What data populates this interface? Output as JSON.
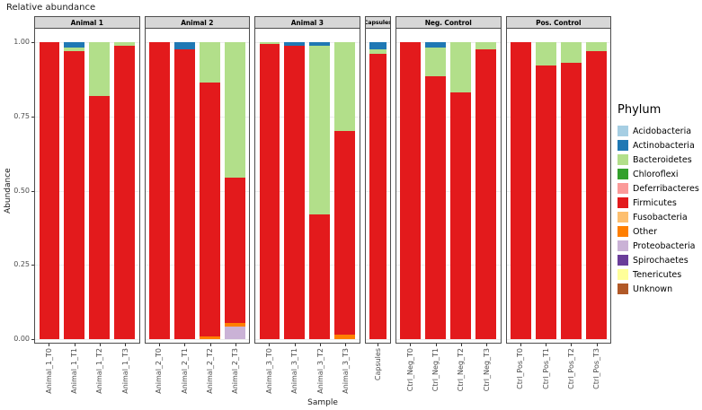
{
  "chart_data": {
    "type": "bar",
    "stacked": true,
    "title": "Relative abundance",
    "xlabel": "Sample",
    "ylabel": "Abundance",
    "ylim": [
      0,
      1
    ],
    "legend_title": "Phylum",
    "yticks": [
      {
        "value": 0.0,
        "label": "0.00"
      },
      {
        "value": 0.25,
        "label": "0.25"
      },
      {
        "value": 0.5,
        "label": "0.50"
      },
      {
        "value": 0.75,
        "label": "0.75"
      },
      {
        "value": 1.0,
        "label": "1.00"
      }
    ],
    "phyla": [
      {
        "name": "Acidobacteria",
        "color": "#A6CEE3"
      },
      {
        "name": "Actinobacteria",
        "color": "#1F78B4"
      },
      {
        "name": "Bacteroidetes",
        "color": "#B2DF8A"
      },
      {
        "name": "Chloroflexi",
        "color": "#33A02C"
      },
      {
        "name": "Deferribacteres",
        "color": "#FB9A99"
      },
      {
        "name": "Firmicutes",
        "color": "#E31A1C"
      },
      {
        "name": "Fusobacteria",
        "color": "#FDBF6F"
      },
      {
        "name": "Other",
        "color": "#FF7F00"
      },
      {
        "name": "Proteobacteria",
        "color": "#CAB2D6"
      },
      {
        "name": "Spirochaetes",
        "color": "#6A3D9A"
      },
      {
        "name": "Tenericutes",
        "color": "#FFFF99"
      },
      {
        "name": "Unknown",
        "color": "#B15928"
      }
    ],
    "facets": [
      {
        "label": "Animal 1",
        "bars": [
          {
            "sample": "Animal_1_T0",
            "segments": [
              {
                "phylum": "Firmicutes",
                "value": 1.0
              }
            ]
          },
          {
            "sample": "Animal_1_T1",
            "segments": [
              {
                "phylum": "Firmicutes",
                "value": 0.97
              },
              {
                "phylum": "Bacteroidetes",
                "value": 0.012
              },
              {
                "phylum": "Actinobacteria",
                "value": 0.018
              }
            ]
          },
          {
            "sample": "Animal_1_T2",
            "segments": [
              {
                "phylum": "Firmicutes",
                "value": 0.82
              },
              {
                "phylum": "Bacteroidetes",
                "value": 0.18
              }
            ]
          },
          {
            "sample": "Animal_1_T3",
            "segments": [
              {
                "phylum": "Firmicutes",
                "value": 0.988
              },
              {
                "phylum": "Bacteroidetes",
                "value": 0.012
              }
            ]
          }
        ]
      },
      {
        "label": "Animal 2",
        "bars": [
          {
            "sample": "Animal_2_T0",
            "segments": [
              {
                "phylum": "Firmicutes",
                "value": 1.0
              }
            ]
          },
          {
            "sample": "Animal_2_T1",
            "segments": [
              {
                "phylum": "Firmicutes",
                "value": 0.975
              },
              {
                "phylum": "Actinobacteria",
                "value": 0.025
              }
            ]
          },
          {
            "sample": "Animal_2_T2",
            "segments": [
              {
                "phylum": "Other",
                "value": 0.01
              },
              {
                "phylum": "Firmicutes",
                "value": 0.855
              },
              {
                "phylum": "Bacteroidetes",
                "value": 0.135
              }
            ]
          },
          {
            "sample": "Animal_2_T3",
            "segments": [
              {
                "phylum": "Proteobacteria",
                "value": 0.042
              },
              {
                "phylum": "Other",
                "value": 0.012
              },
              {
                "phylum": "Firmicutes",
                "value": 0.49
              },
              {
                "phylum": "Bacteroidetes",
                "value": 0.456
              }
            ]
          }
        ]
      },
      {
        "label": "Animal 3",
        "bars": [
          {
            "sample": "Animal_3_T0",
            "segments": [
              {
                "phylum": "Firmicutes",
                "value": 0.995
              },
              {
                "phylum": "Bacteroidetes",
                "value": 0.005
              }
            ]
          },
          {
            "sample": "Animal_3_T1",
            "segments": [
              {
                "phylum": "Firmicutes",
                "value": 0.988
              },
              {
                "phylum": "Actinobacteria",
                "value": 0.012
              }
            ]
          },
          {
            "sample": "Animal_3_T2",
            "segments": [
              {
                "phylum": "Firmicutes",
                "value": 0.42
              },
              {
                "phylum": "Bacteroidetes",
                "value": 0.568
              },
              {
                "phylum": "Actinobacteria",
                "value": 0.012
              }
            ]
          },
          {
            "sample": "Animal_3_T3",
            "segments": [
              {
                "phylum": "Other",
                "value": 0.015
              },
              {
                "phylum": "Firmicutes",
                "value": 0.685
              },
              {
                "phylum": "Bacteroidetes",
                "value": 0.3
              }
            ]
          }
        ]
      },
      {
        "label": "Capsules",
        "bars": [
          {
            "sample": "Capsules",
            "segments": [
              {
                "phylum": "Firmicutes",
                "value": 0.96
              },
              {
                "phylum": "Bacteroidetes",
                "value": 0.015
              },
              {
                "phylum": "Actinobacteria",
                "value": 0.025
              }
            ]
          }
        ]
      },
      {
        "label": "Neg. Control",
        "bars": [
          {
            "sample": "Ctrl_Neg_T0",
            "segments": [
              {
                "phylum": "Firmicutes",
                "value": 1.0
              }
            ]
          },
          {
            "sample": "Ctrl_Neg_T1",
            "segments": [
              {
                "phylum": "Firmicutes",
                "value": 0.885
              },
              {
                "phylum": "Bacteroidetes",
                "value": 0.097
              },
              {
                "phylum": "Actinobacteria",
                "value": 0.018
              }
            ]
          },
          {
            "sample": "Ctrl_Neg_T2",
            "segments": [
              {
                "phylum": "Firmicutes",
                "value": 0.83
              },
              {
                "phylum": "Bacteroidetes",
                "value": 0.17
              }
            ]
          },
          {
            "sample": "Ctrl_Neg_T3",
            "segments": [
              {
                "phylum": "Firmicutes",
                "value": 0.975
              },
              {
                "phylum": "Bacteroidetes",
                "value": 0.025
              }
            ]
          }
        ]
      },
      {
        "label": "Pos. Control",
        "bars": [
          {
            "sample": "Ctrl_Pos_T0",
            "segments": [
              {
                "phylum": "Firmicutes",
                "value": 1.0
              }
            ]
          },
          {
            "sample": "Ctrl_Pos_T1",
            "segments": [
              {
                "phylum": "Firmicutes",
                "value": 0.92
              },
              {
                "phylum": "Bacteroidetes",
                "value": 0.08
              }
            ]
          },
          {
            "sample": "Ctrl_Pos_T2",
            "segments": [
              {
                "phylum": "Firmicutes",
                "value": 0.93
              },
              {
                "phylum": "Bacteroidetes",
                "value": 0.07
              }
            ]
          },
          {
            "sample": "Ctrl_Pos_T3",
            "segments": [
              {
                "phylum": "Firmicutes",
                "value": 0.97
              },
              {
                "phylum": "Bacteroidetes",
                "value": 0.03
              }
            ]
          }
        ]
      }
    ]
  }
}
